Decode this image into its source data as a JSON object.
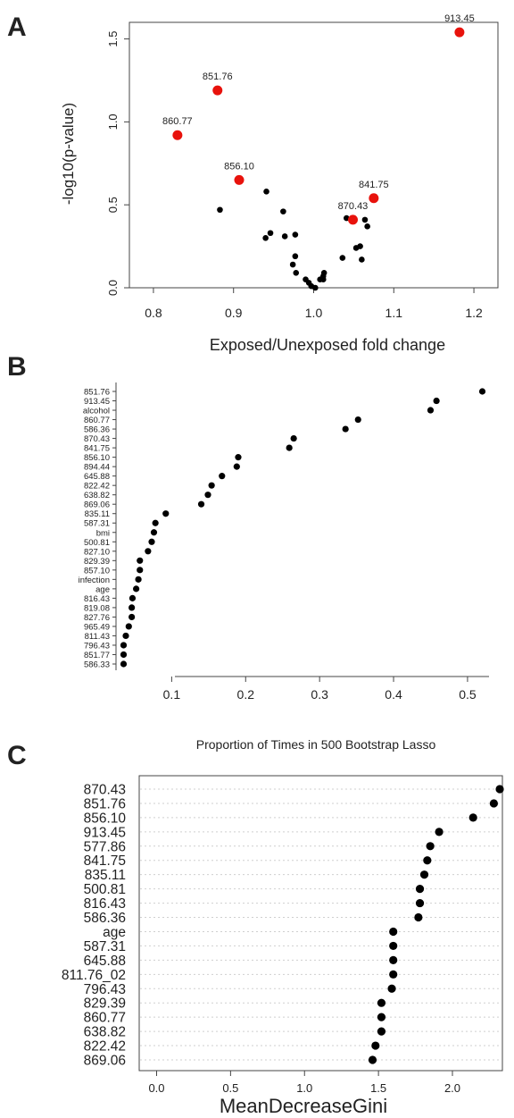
{
  "chart_data": [
    {
      "panel": "A",
      "type": "scatter",
      "xlabel": "Exposed/Unexposed fold change",
      "ylabel": "-log10(p-value)",
      "xlim": [
        0.77,
        1.23
      ],
      "ylim": [
        0,
        1.6
      ],
      "xticks": [
        "0.8",
        "0.9",
        "1.0",
        "1.1",
        "1.2"
      ],
      "yticks": [
        "0.0",
        "0.5",
        "1.0",
        "1.5"
      ],
      "highlight_color": "#e8120c",
      "point_color": "#000000",
      "labeled_points": [
        {
          "label": "913.45",
          "x": 1.182,
          "y": 1.54
        },
        {
          "label": "851.76",
          "x": 0.88,
          "y": 1.19
        },
        {
          "label": "860.77",
          "x": 0.83,
          "y": 0.92
        },
        {
          "label": "856.10",
          "x": 0.907,
          "y": 0.65
        },
        {
          "label": "841.75",
          "x": 1.075,
          "y": 0.54
        },
        {
          "label": "870.43",
          "x": 1.049,
          "y": 0.41
        }
      ],
      "points": [
        [
          0.883,
          0.47
        ],
        [
          0.941,
          0.58
        ],
        [
          0.962,
          0.46
        ],
        [
          0.946,
          0.33
        ],
        [
          0.94,
          0.3
        ],
        [
          0.964,
          0.31
        ],
        [
          0.977,
          0.32
        ],
        [
          0.977,
          0.19
        ],
        [
          0.974,
          0.14
        ],
        [
          0.978,
          0.09
        ],
        [
          0.99,
          0.05
        ],
        [
          0.994,
          0.03
        ],
        [
          0.997,
          0.01
        ],
        [
          1.002,
          0.0
        ],
        [
          1.008,
          0.05
        ],
        [
          1.012,
          0.07
        ],
        [
          1.013,
          0.09
        ],
        [
          1.012,
          0.05
        ],
        [
          1.036,
          0.18
        ],
        [
          1.041,
          0.42
        ],
        [
          1.053,
          0.24
        ],
        [
          1.058,
          0.25
        ],
        [
          1.06,
          0.17
        ],
        [
          1.064,
          0.41
        ],
        [
          1.067,
          0.37
        ]
      ]
    },
    {
      "panel": "B",
      "type": "scatter",
      "title": "Proportion of Times in 500 Bootstrap Lasso",
      "xlim": [
        0,
        0.52
      ],
      "xticks": [
        "0.1",
        "0.2",
        "0.3",
        "0.4",
        "0.5"
      ],
      "y_categories": [
        "851.76",
        "913.45",
        "alcohol",
        "860.77",
        "586.36",
        "870.43",
        "841.75",
        "856.10",
        "894.44",
        "645.88",
        "822.42",
        "638.82",
        "869.06",
        "835.11",
        "587.31",
        "bmi",
        "500.81",
        "827.10",
        "829.39",
        "857.10",
        "infection",
        "age",
        "816.43",
        "819.08",
        "827.76",
        "965.49",
        "811.43",
        "796.43",
        "851.77",
        "586.33"
      ],
      "values": [
        0.52,
        0.458,
        0.45,
        0.352,
        0.335,
        0.265,
        0.259,
        0.19,
        0.188,
        0.168,
        0.154,
        0.149,
        0.14,
        0.092,
        0.078,
        0.076,
        0.073,
        0.068,
        0.057,
        0.057,
        0.055,
        0.052,
        0.047,
        0.046,
        0.046,
        0.042,
        0.038,
        0.035,
        0.035,
        0.035
      ]
    },
    {
      "panel": "C",
      "type": "scatter",
      "xlabel": "MeanDecreaseGini",
      "xlim": [
        -0.1,
        2.4
      ],
      "xticks": [
        "0.0",
        "0.5",
        "1.0",
        "1.5",
        "2.0"
      ],
      "y_categories": [
        "870.43",
        "851.76",
        "856.10",
        "913.45",
        "577.86",
        "841.75",
        "835.11",
        "500.81",
        "816.43",
        "586.36",
        "age",
        "587.31",
        "645.88",
        "811.76_02",
        "796.43",
        "829.39",
        "860.77",
        "638.82",
        "822.42",
        "869.06"
      ],
      "values": [
        2.32,
        2.28,
        2.14,
        1.91,
        1.85,
        1.83,
        1.81,
        1.78,
        1.78,
        1.77,
        1.6,
        1.6,
        1.6,
        1.6,
        1.59,
        1.52,
        1.52,
        1.52,
        1.48,
        1.46
      ]
    }
  ]
}
